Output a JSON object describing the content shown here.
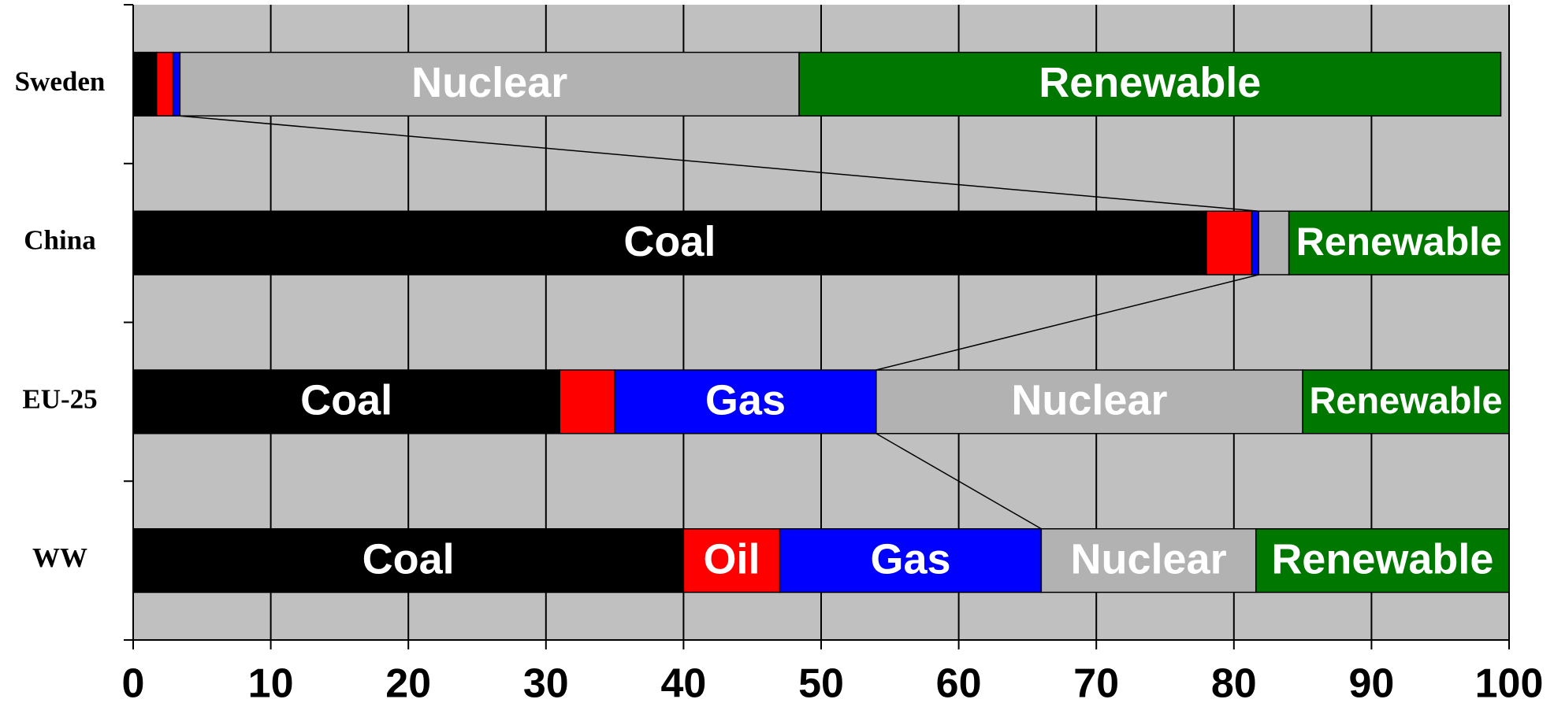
{
  "chart_data": {
    "type": "stacked_barh",
    "categories": [
      "Sweden",
      "China",
      "EU-25",
      "WW"
    ],
    "series": [
      {
        "name": "Coal",
        "color": "#000000",
        "values": [
          1.7,
          78,
          31,
          40
        ]
      },
      {
        "name": "Oil",
        "color": "#ff0000",
        "values": [
          1.2,
          3.3,
          4,
          7
        ]
      },
      {
        "name": "Gas",
        "color": "#0000ff",
        "values": [
          0.5,
          0.5,
          19,
          19
        ]
      },
      {
        "name": "Nuclear",
        "color": "#b2b2b2",
        "values": [
          45,
          2.2,
          31,
          15.6
        ]
      },
      {
        "name": "Renewable",
        "color": "#007800",
        "values": [
          51,
          16,
          15,
          18.4
        ]
      }
    ],
    "xlim": [
      0,
      100
    ],
    "xticks": [
      0,
      10,
      20,
      30,
      40,
      50,
      60,
      70,
      80,
      90,
      100
    ],
    "grid": true
  }
}
